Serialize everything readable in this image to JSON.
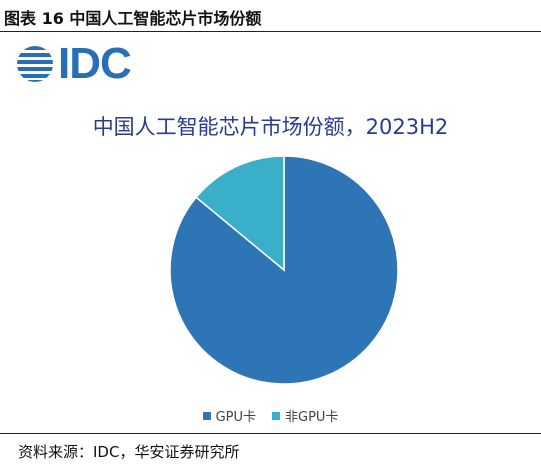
{
  "header": {
    "caption": "图表 16 中国人工智能芯片市场份额"
  },
  "logo": {
    "text": "IDC",
    "icon": "globe-stripes-icon",
    "color": "#2a6fb6"
  },
  "footer": {
    "source": "资料来源：IDC，华安证券研究所"
  },
  "chart_data": {
    "type": "pie",
    "title": "中国人工智能芯片市场份额，2023H2",
    "categories": [
      "GPU卡",
      "非GPU卡"
    ],
    "values": [
      86,
      14
    ],
    "unit": "%",
    "colors": [
      "#2e75b6",
      "#3aafc9"
    ],
    "start_angle_deg": 0,
    "direction": "clockwise",
    "legend_position": "bottom"
  }
}
